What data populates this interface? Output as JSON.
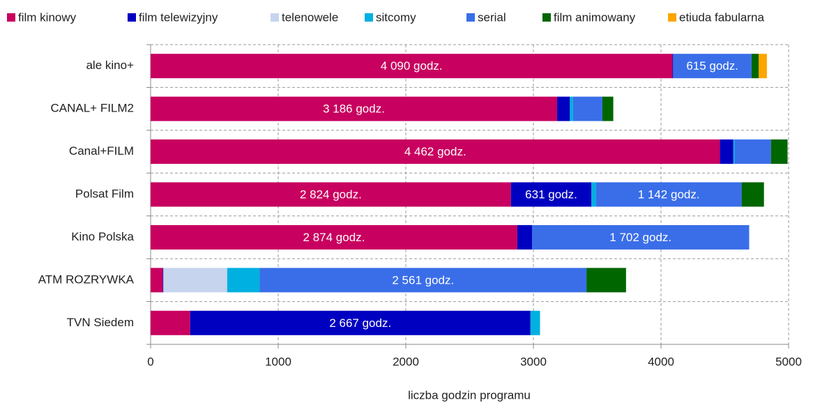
{
  "chart_data": {
    "type": "stacked-bar-horizontal",
    "x_label": "liczba godzin programu",
    "categories": [
      "ale kino+",
      "CANAL+ FILM2",
      "Canal+FILM",
      "Polsat Film",
      "Kino Polska",
      "ATM ROZRYWKA",
      "TVN Siedem"
    ],
    "series": [
      {
        "name": "film kinowy",
        "color": "#c8005f",
        "values": [
          4090,
          3186,
          4462,
          2824,
          2874,
          95,
          310
        ],
        "value_labels": [
          "4 090  godz.",
          "3 186  godz.",
          "4 462  godz.",
          "2 824  godz.",
          "2 874  godz.",
          null,
          null
        ]
      },
      {
        "name": "film telewizyjny",
        "color": "#0000c0",
        "values": [
          5,
          100,
          105,
          631,
          115,
          5,
          2667
        ],
        "value_labels": [
          null,
          null,
          null,
          "631  godz.",
          null,
          null,
          "2 667  godz."
        ]
      },
      {
        "name": "telenowele",
        "color": "#c6d4ee",
        "values": [
          0,
          0,
          0,
          0,
          0,
          500,
          0
        ]
      },
      {
        "name": "sitcomy",
        "color": "#00b0e0",
        "values": [
          0,
          25,
          10,
          35,
          0,
          255,
          75
        ]
      },
      {
        "name": "serial",
        "color": "#3a6ee8",
        "values": [
          615,
          230,
          285,
          1142,
          1702,
          2561,
          0
        ],
        "value_labels": [
          "615  godz.",
          null,
          null,
          "1 142  godz.",
          "1 702  godz.",
          "2 561  godz.",
          null
        ]
      },
      {
        "name": "film animowany",
        "color": "#006600",
        "values": [
          55,
          85,
          130,
          175,
          0,
          310,
          0
        ]
      },
      {
        "name": "etiuda fabularna",
        "color": "#ffa500",
        "values": [
          65,
          0,
          0,
          0,
          0,
          0,
          0
        ]
      }
    ],
    "xlim": [
      0,
      5000
    ],
    "xticks": [
      0,
      1000,
      2000,
      3000,
      4000,
      5000
    ],
    "grid": true,
    "legend": "top"
  }
}
